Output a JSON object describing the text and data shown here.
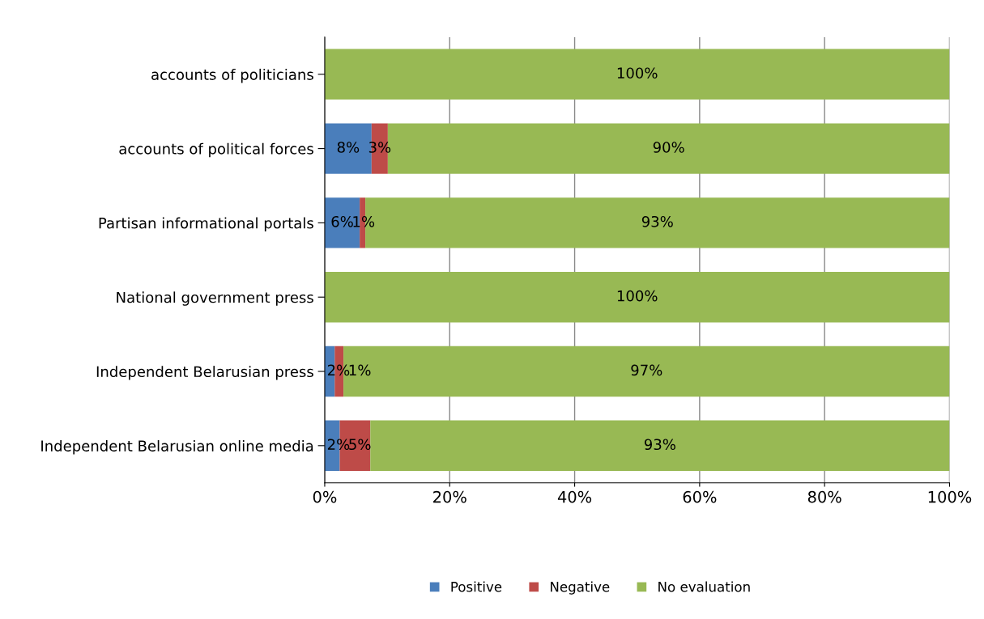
{
  "chart_data": {
    "type": "bar",
    "orientation": "horizontal",
    "stacked": true,
    "categories": [
      "accounts of politicians",
      "accounts of political forces",
      "Partisan informational portals",
      "National government press",
      "Independent Belarusian press",
      "Independent Belarusian online media"
    ],
    "series": [
      {
        "name": "Positive",
        "color": "#4a7ebb",
        "values": [
          0,
          7.5,
          5.6,
          0,
          1.6,
          2.4
        ],
        "value_labels": [
          null,
          "8%",
          "6%",
          null,
          "2%",
          "2%"
        ]
      },
      {
        "name": "Negative",
        "color": "#be4b48",
        "values": [
          0,
          2.6,
          0.9,
          0,
          1.4,
          4.9
        ],
        "value_labels": [
          null,
          "3%",
          "1%",
          null,
          "1%",
          "5%"
        ]
      },
      {
        "name": "No evaluation",
        "color": "#98b954",
        "values": [
          100,
          89.9,
          93.5,
          100,
          97.0,
          92.7
        ],
        "value_labels": [
          "100%",
          "90%",
          "93%",
          "100%",
          "97%",
          "93%"
        ]
      }
    ],
    "xlim": [
      0,
      100
    ],
    "xticks": [
      {
        "value": 0,
        "label": "0%"
      },
      {
        "value": 20,
        "label": "20%"
      },
      {
        "value": 40,
        "label": "40%"
      },
      {
        "value": 60,
        "label": "60%"
      },
      {
        "value": 80,
        "label": "80%"
      },
      {
        "value": 100,
        "label": "100%"
      }
    ],
    "grid": "x",
    "legend": "bottom"
  }
}
